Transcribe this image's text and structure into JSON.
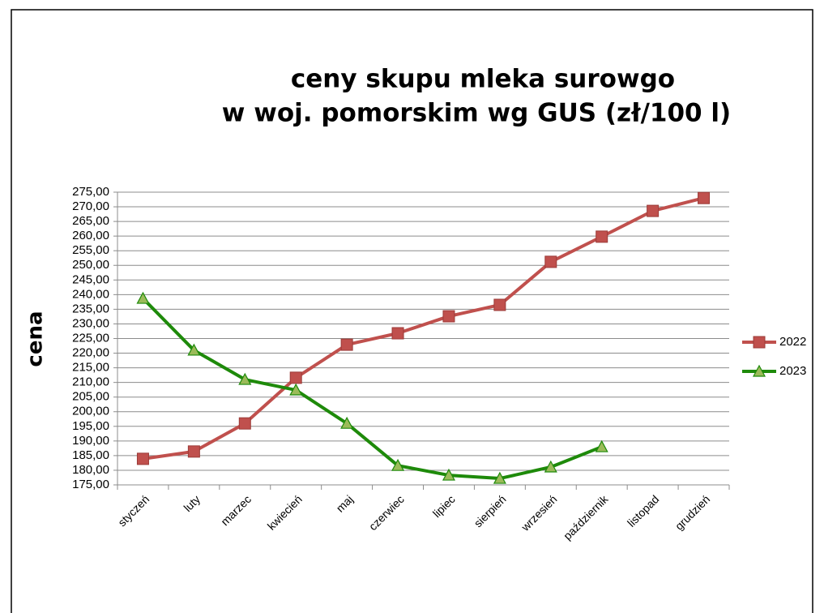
{
  "chart_data": {
    "type": "line",
    "title": [
      "ceny skupu mleka surowgo",
      "w woj. pomorskim wg GUS (zł/100 l)"
    ],
    "y_label": "cena",
    "categories": [
      "styczeń",
      "luty",
      "marzec",
      "kwiecień",
      "maj",
      "czerwiec",
      "lipiec",
      "sierpień",
      "wrzesień",
      "październik",
      "listopad",
      "grudzień"
    ],
    "series": [
      {
        "name": "2022",
        "color": "#c0504d",
        "marker": "square",
        "values": [
          183.9,
          186.4,
          196.0,
          211.6,
          222.9,
          226.8,
          232.6,
          236.5,
          251.2,
          259.8,
          268.6,
          273.0
        ]
      },
      {
        "name": "2023",
        "color": "#1e8a0a",
        "marker": "triangle",
        "values": [
          238.7,
          221.0,
          211.0,
          207.4,
          196.0,
          181.6,
          178.3,
          177.2,
          181.1,
          188.0,
          null,
          null
        ]
      }
    ],
    "ylim": [
      175,
      275
    ],
    "yticks": [
      {
        "value": 175,
        "label": "175,00"
      },
      {
        "value": 180,
        "label": "180,00"
      },
      {
        "value": 185,
        "label": "185,00"
      },
      {
        "value": 190,
        "label": "190,00"
      },
      {
        "value": 195,
        "label": "195,00"
      },
      {
        "value": 200,
        "label": "200,00"
      },
      {
        "value": 205,
        "label": "205,00"
      },
      {
        "value": 210,
        "label": "210,00"
      },
      {
        "value": 215,
        "label": "215,00"
      },
      {
        "value": 220,
        "label": "220,00"
      },
      {
        "value": 225,
        "label": "225,00"
      },
      {
        "value": 230,
        "label": "230,00"
      },
      {
        "value": 235,
        "label": "235,00"
      },
      {
        "value": 240,
        "label": "240,00"
      },
      {
        "value": 245,
        "label": "245,00"
      },
      {
        "value": 250,
        "label": "250,00"
      },
      {
        "value": 255,
        "label": "255,00"
      },
      {
        "value": 260,
        "label": "260,00"
      },
      {
        "value": 265,
        "label": "265,00"
      },
      {
        "value": 270,
        "label": "270,00"
      },
      {
        "value": 275,
        "label": "275,00"
      }
    ],
    "grid": true,
    "legend": "right"
  }
}
